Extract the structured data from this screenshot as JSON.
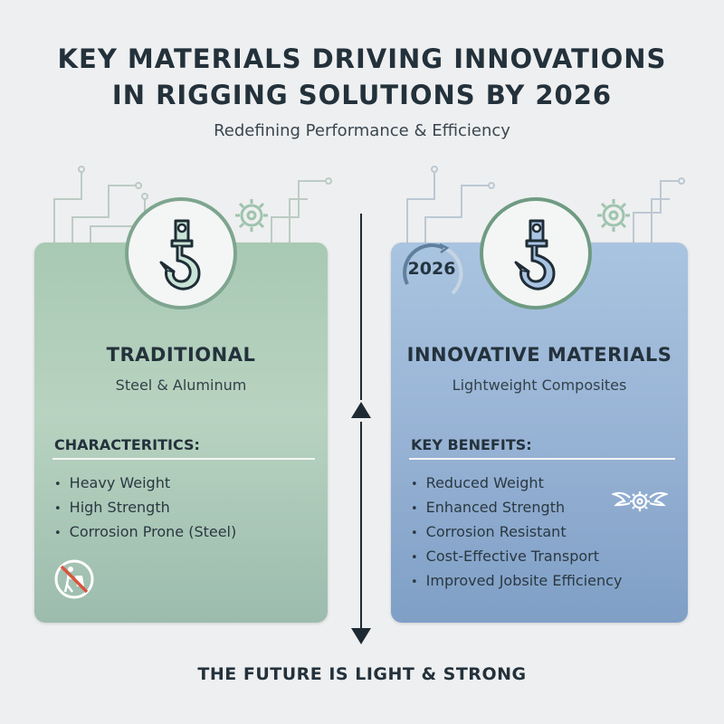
{
  "title_line1": "KEY MATERIALS DRIVING INNOVATIONS",
  "title_line2": "IN RIGGING SOLUTIONS BY 2026",
  "subtitle": "Redefining Performance & Efficiency",
  "left_panel": {
    "heading": "TRADITIONAL",
    "subheading": "Steel & Aluminum",
    "section_label": "CHARACTERITICS:",
    "items": [
      "Heavy Weight",
      "High Strength",
      "Corrosion Prone (Steel)"
    ],
    "icon": "crane-hook-icon",
    "badge_icon": "no-heavy-load-icon"
  },
  "right_panel": {
    "heading": "INNOVATIVE MATERIALS",
    "subheading": "Lightweight Composites",
    "section_label": "KEY BENEFITS:",
    "items": [
      "Reduced Weight",
      "Enhanced Strength",
      "Corrosion Resistant",
      "Cost-Effective Transport",
      "Improved Jobsite Efficiency"
    ],
    "year_badge": "2026",
    "icon": "crane-hook-icon",
    "badge_icon": "winged-gear-icon"
  },
  "footer": "THE FUTURE IS LIGHT & STRONG",
  "colors": {
    "left_panel": "#a8c9b4",
    "right_panel": "#9ab5d6",
    "text_dark": "#23313b",
    "accent_green": "#7ea58f"
  }
}
